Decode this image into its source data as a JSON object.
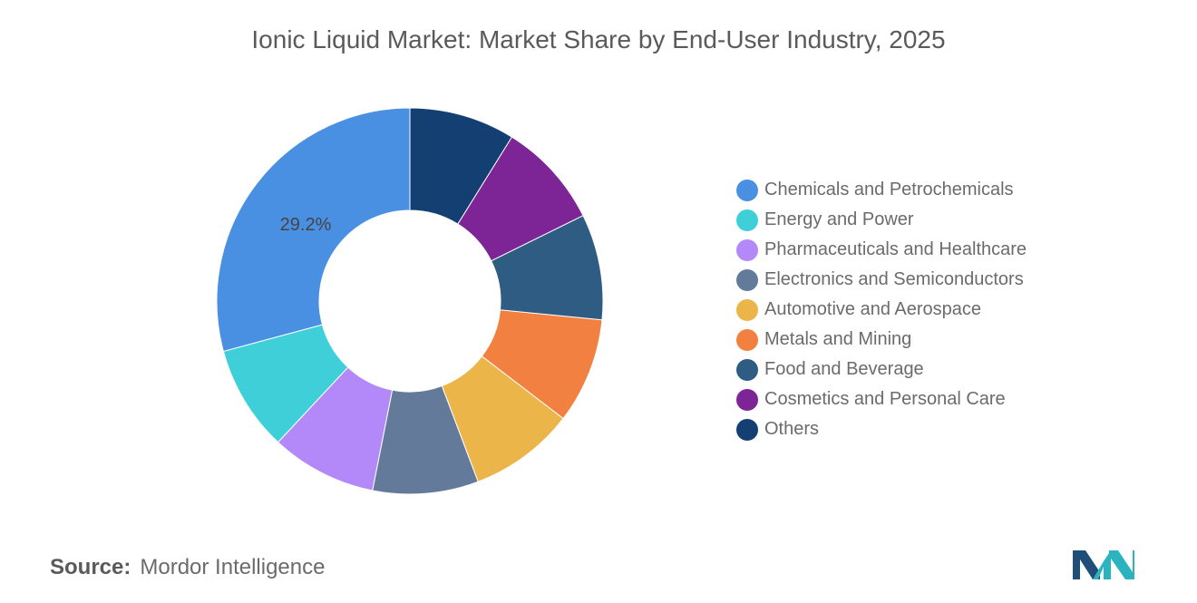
{
  "chart_data": {
    "type": "pie",
    "donut": true,
    "title": "Ionic Liquid Market: Market Share by End-User Industry, 2025",
    "categories": [
      "Chemicals and Petrochemicals",
      "Energy and Power",
      "Pharmaceuticals and Healthcare",
      "Electronics and Semiconductors",
      "Automotive and Aerospace",
      "Metals and Mining",
      "Food and Beverage",
      "Cosmetics and Personal Care",
      "Others"
    ],
    "values": [
      29.2,
      8.85,
      8.85,
      8.85,
      8.85,
      8.85,
      8.85,
      8.85,
      8.85
    ],
    "colors": [
      "#4a90e2",
      "#3ecfd8",
      "#b388f9",
      "#647a9a",
      "#ebb54a",
      "#f28141",
      "#2e5c82",
      "#7d2596",
      "#143f73"
    ],
    "data_labels": [
      {
        "category": "Chemicals and Petrochemicals",
        "text": "29.2%"
      }
    ],
    "legend_placement": "right"
  },
  "source": {
    "label": "Source:",
    "text": "Mordor Intelligence"
  },
  "logo": {
    "name": "mordor-intelligence-logo",
    "colors": [
      "#1f4e79",
      "#2bb3c0"
    ]
  }
}
